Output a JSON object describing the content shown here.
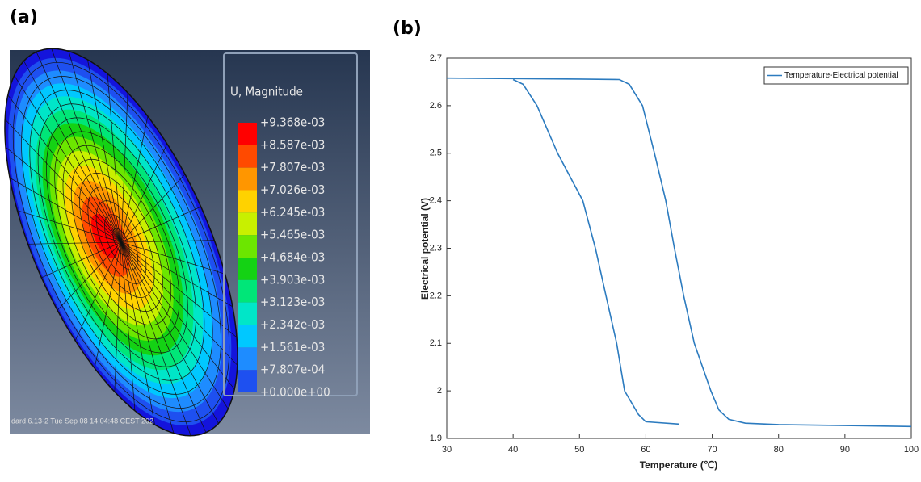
{
  "panel_a": {
    "label": "(a)",
    "legend_title": "U, Magnitude",
    "legend": [
      {
        "text": "+9.368e-03",
        "color": "#ff0000"
      },
      {
        "text": "+8.587e-03",
        "color": "#ff4a00"
      },
      {
        "text": "+7.807e-03",
        "color": "#ff9600"
      },
      {
        "text": "+7.026e-03",
        "color": "#ffd200"
      },
      {
        "text": "+6.245e-03",
        "color": "#c8f000"
      },
      {
        "text": "+5.465e-03",
        "color": "#6ce600"
      },
      {
        "text": "+4.684e-03",
        "color": "#14d214"
      },
      {
        "text": "+3.903e-03",
        "color": "#00e678"
      },
      {
        "text": "+3.123e-03",
        "color": "#00e6c8"
      },
      {
        "text": "+2.342e-03",
        "color": "#00c8ff"
      },
      {
        "text": "+1.561e-03",
        "color": "#1e8cff"
      },
      {
        "text": "+7.807e-04",
        "color": "#1e50f0"
      },
      {
        "text": "+0.000e+00",
        "color": "#1414dc"
      }
    ],
    "footer": "dard 6.13-2    Tue Sep 08 14:04:48 CEST 202"
  },
  "chart_data": {
    "type": "line",
    "label": "(b)",
    "x_label": "Temperature (℃)",
    "y_label": "Electrical potential (V)",
    "xlim": [
      30,
      100
    ],
    "ylim": [
      1.9,
      2.7
    ],
    "xticks": [
      30,
      40,
      50,
      60,
      70,
      80,
      90,
      100
    ],
    "yticks": [
      1.9,
      2,
      2.1,
      2.2,
      2.3,
      2.4,
      2.5,
      2.6,
      2.7
    ],
    "legend_position": "upper right",
    "series": [
      {
        "name": "Temperature-Electrical potential",
        "color": "#2c7bbf",
        "x": [
          30,
          40,
          50,
          56,
          57.5,
          59.5,
          61.3,
          63,
          64.3,
          65.7,
          67.3,
          69.8,
          71,
          72.5,
          75,
          80,
          90,
          100,
          null,
          65,
          60,
          58.9,
          56.8,
          55.6,
          54,
          52.4,
          50.5,
          46.7,
          43.6,
          41.5,
          40
        ],
        "values": [
          2.658,
          2.657,
          2.656,
          2.655,
          2.645,
          2.6,
          2.5,
          2.4,
          2.3,
          2.2,
          2.1,
          2.0,
          1.96,
          1.94,
          1.932,
          1.929,
          1.927,
          1.925,
          null,
          1.93,
          1.935,
          1.95,
          2.0,
          2.1,
          2.2,
          2.3,
          2.4,
          2.5,
          2.6,
          2.645,
          2.655
        ]
      }
    ]
  }
}
